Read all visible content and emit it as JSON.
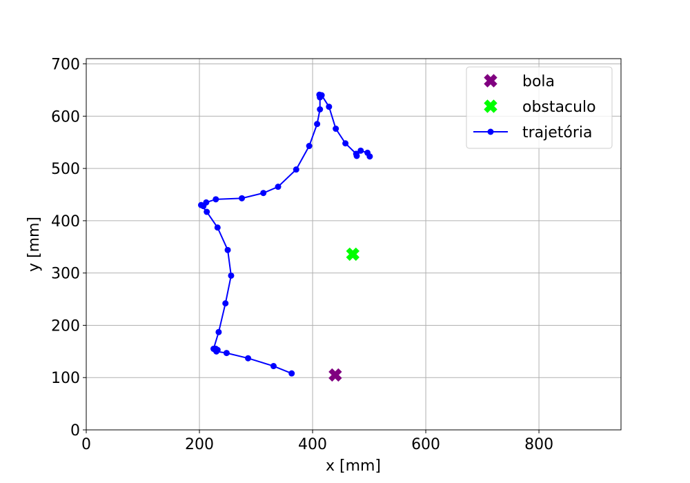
{
  "chart_data": {
    "type": "scatter",
    "title": "",
    "xlabel": "x [mm]",
    "ylabel": "y [mm]",
    "xlim": [
      0,
      945
    ],
    "ylim": [
      0,
      710
    ],
    "xticks": [
      0,
      200,
      400,
      600,
      800
    ],
    "yticks": [
      0,
      100,
      200,
      300,
      400,
      500,
      600,
      700
    ],
    "grid": true,
    "legend_position": "top-right",
    "series": [
      {
        "name": "bola",
        "marker": "X",
        "color": "#800080",
        "points": [
          [
            440,
            105
          ]
        ]
      },
      {
        "name": "obstaculo",
        "marker": "X",
        "color": "#00ff00",
        "points": [
          [
            471,
            336
          ]
        ]
      },
      {
        "name": "trajetória",
        "marker": "o-line",
        "color": "#0000ff",
        "points": [
          [
            363,
            108
          ],
          [
            331,
            122
          ],
          [
            286,
            137
          ],
          [
            248,
            147
          ],
          [
            230,
            150
          ],
          [
            229,
            152
          ],
          [
            232,
            153
          ],
          [
            229,
            155
          ],
          [
            225,
            155
          ],
          [
            234,
            187
          ],
          [
            246,
            242
          ],
          [
            256,
            295
          ],
          [
            250,
            344
          ],
          [
            232,
            387
          ],
          [
            213,
            417
          ],
          [
            203,
            430
          ],
          [
            207,
            428
          ],
          [
            212,
            435
          ],
          [
            229,
            441
          ],
          [
            275,
            443
          ],
          [
            313,
            453
          ],
          [
            339,
            465
          ],
          [
            371,
            498
          ],
          [
            394,
            543
          ],
          [
            408,
            585
          ],
          [
            413,
            613
          ],
          [
            413,
            636
          ],
          [
            412,
            641
          ],
          [
            416,
            640
          ],
          [
            429,
            618
          ],
          [
            441,
            576
          ],
          [
            458,
            548
          ],
          [
            477,
            528
          ],
          [
            478,
            524
          ],
          [
            485,
            534
          ],
          [
            497,
            530
          ],
          [
            501,
            523
          ]
        ]
      }
    ]
  }
}
